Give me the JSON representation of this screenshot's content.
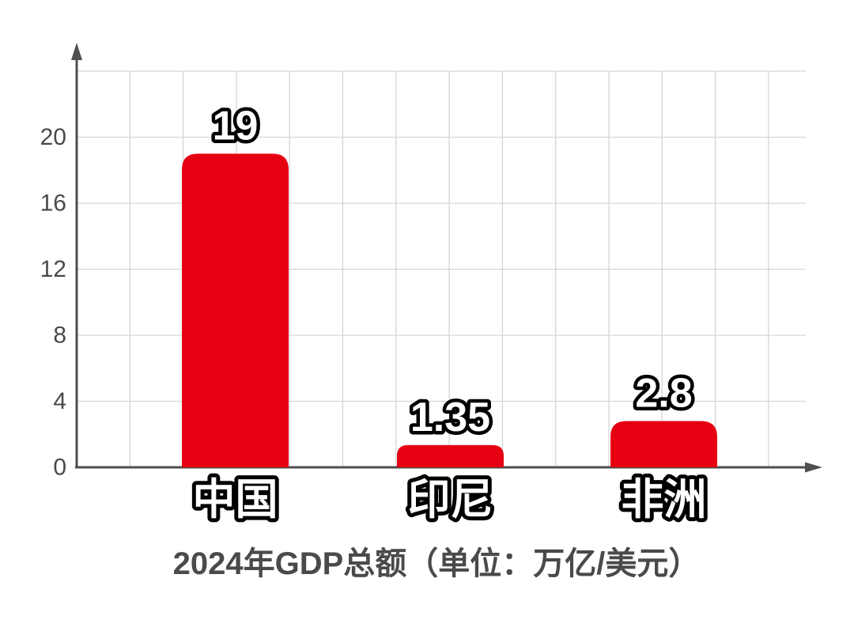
{
  "chart_data": {
    "type": "bar",
    "title": "2024年GDP总额（单位：万亿/美元）",
    "categories": [
      "中国",
      "印尼",
      "非洲"
    ],
    "values": [
      19,
      1.35,
      2.8
    ],
    "value_labels": [
      "19",
      "1.35",
      "2.8"
    ],
    "xlabel": "",
    "ylabel": "",
    "yticks": [
      0,
      4,
      8,
      12,
      16,
      20
    ],
    "ylim": [
      0,
      24
    ],
    "grid": true,
    "legend": "none",
    "bar_color": "#e60012",
    "axis_color": "#4f4f4f",
    "grid_color": "#d6d6d6",
    "tick_label_color": "#4a4a4a",
    "title_color": "#4a4a4a",
    "bar_label_fill": "#ffffff",
    "bar_label_outline": "#000000"
  }
}
